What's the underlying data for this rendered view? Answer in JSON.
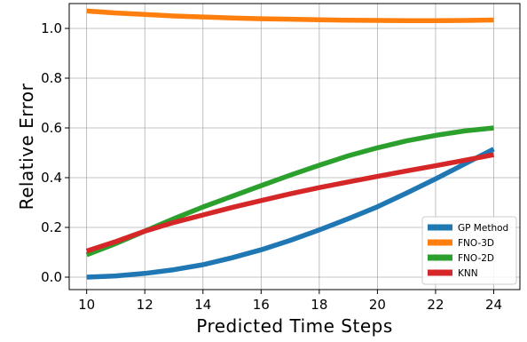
{
  "chart_data": {
    "type": "line",
    "xlabel": "Predicted Time Steps",
    "ylabel": "Relative Error",
    "xlim": [
      9.4,
      24.9
    ],
    "ylim": [
      -0.05,
      1.1
    ],
    "xticks": [
      10,
      12,
      14,
      16,
      18,
      20,
      22,
      24
    ],
    "yticks": [
      0.0,
      0.2,
      0.4,
      0.6,
      0.8,
      1.0
    ],
    "ytick_labels": [
      "0.0",
      "0.2",
      "0.4",
      "0.6",
      "0.8",
      "1.0"
    ],
    "grid": true,
    "legend_position": "lower-right",
    "x": [
      10,
      11,
      12,
      13,
      14,
      15,
      16,
      17,
      18,
      19,
      20,
      21,
      22,
      23,
      24
    ],
    "series": [
      {
        "name": "GP Method",
        "color": "#1f77b4",
        "values": [
          0.0,
          0.005,
          0.015,
          0.03,
          0.05,
          0.078,
          0.11,
          0.148,
          0.19,
          0.235,
          0.283,
          0.338,
          0.395,
          0.455,
          0.515
        ]
      },
      {
        "name": "FNO-3D",
        "color": "#ff7f0e",
        "values": [
          1.07,
          1.062,
          1.056,
          1.05,
          1.046,
          1.042,
          1.039,
          1.037,
          1.035,
          1.033,
          1.032,
          1.031,
          1.031,
          1.032,
          1.034
        ]
      },
      {
        "name": "FNO-2D",
        "color": "#2ca02c",
        "values": [
          0.09,
          0.135,
          0.185,
          0.235,
          0.282,
          0.325,
          0.368,
          0.41,
          0.45,
          0.488,
          0.52,
          0.548,
          0.57,
          0.588,
          0.6
        ]
      },
      {
        "name": "KNN",
        "color": "#d62728",
        "values": [
          0.105,
          0.143,
          0.185,
          0.22,
          0.25,
          0.28,
          0.308,
          0.335,
          0.36,
          0.383,
          0.405,
          0.427,
          0.448,
          0.47,
          0.492
        ]
      }
    ]
  }
}
